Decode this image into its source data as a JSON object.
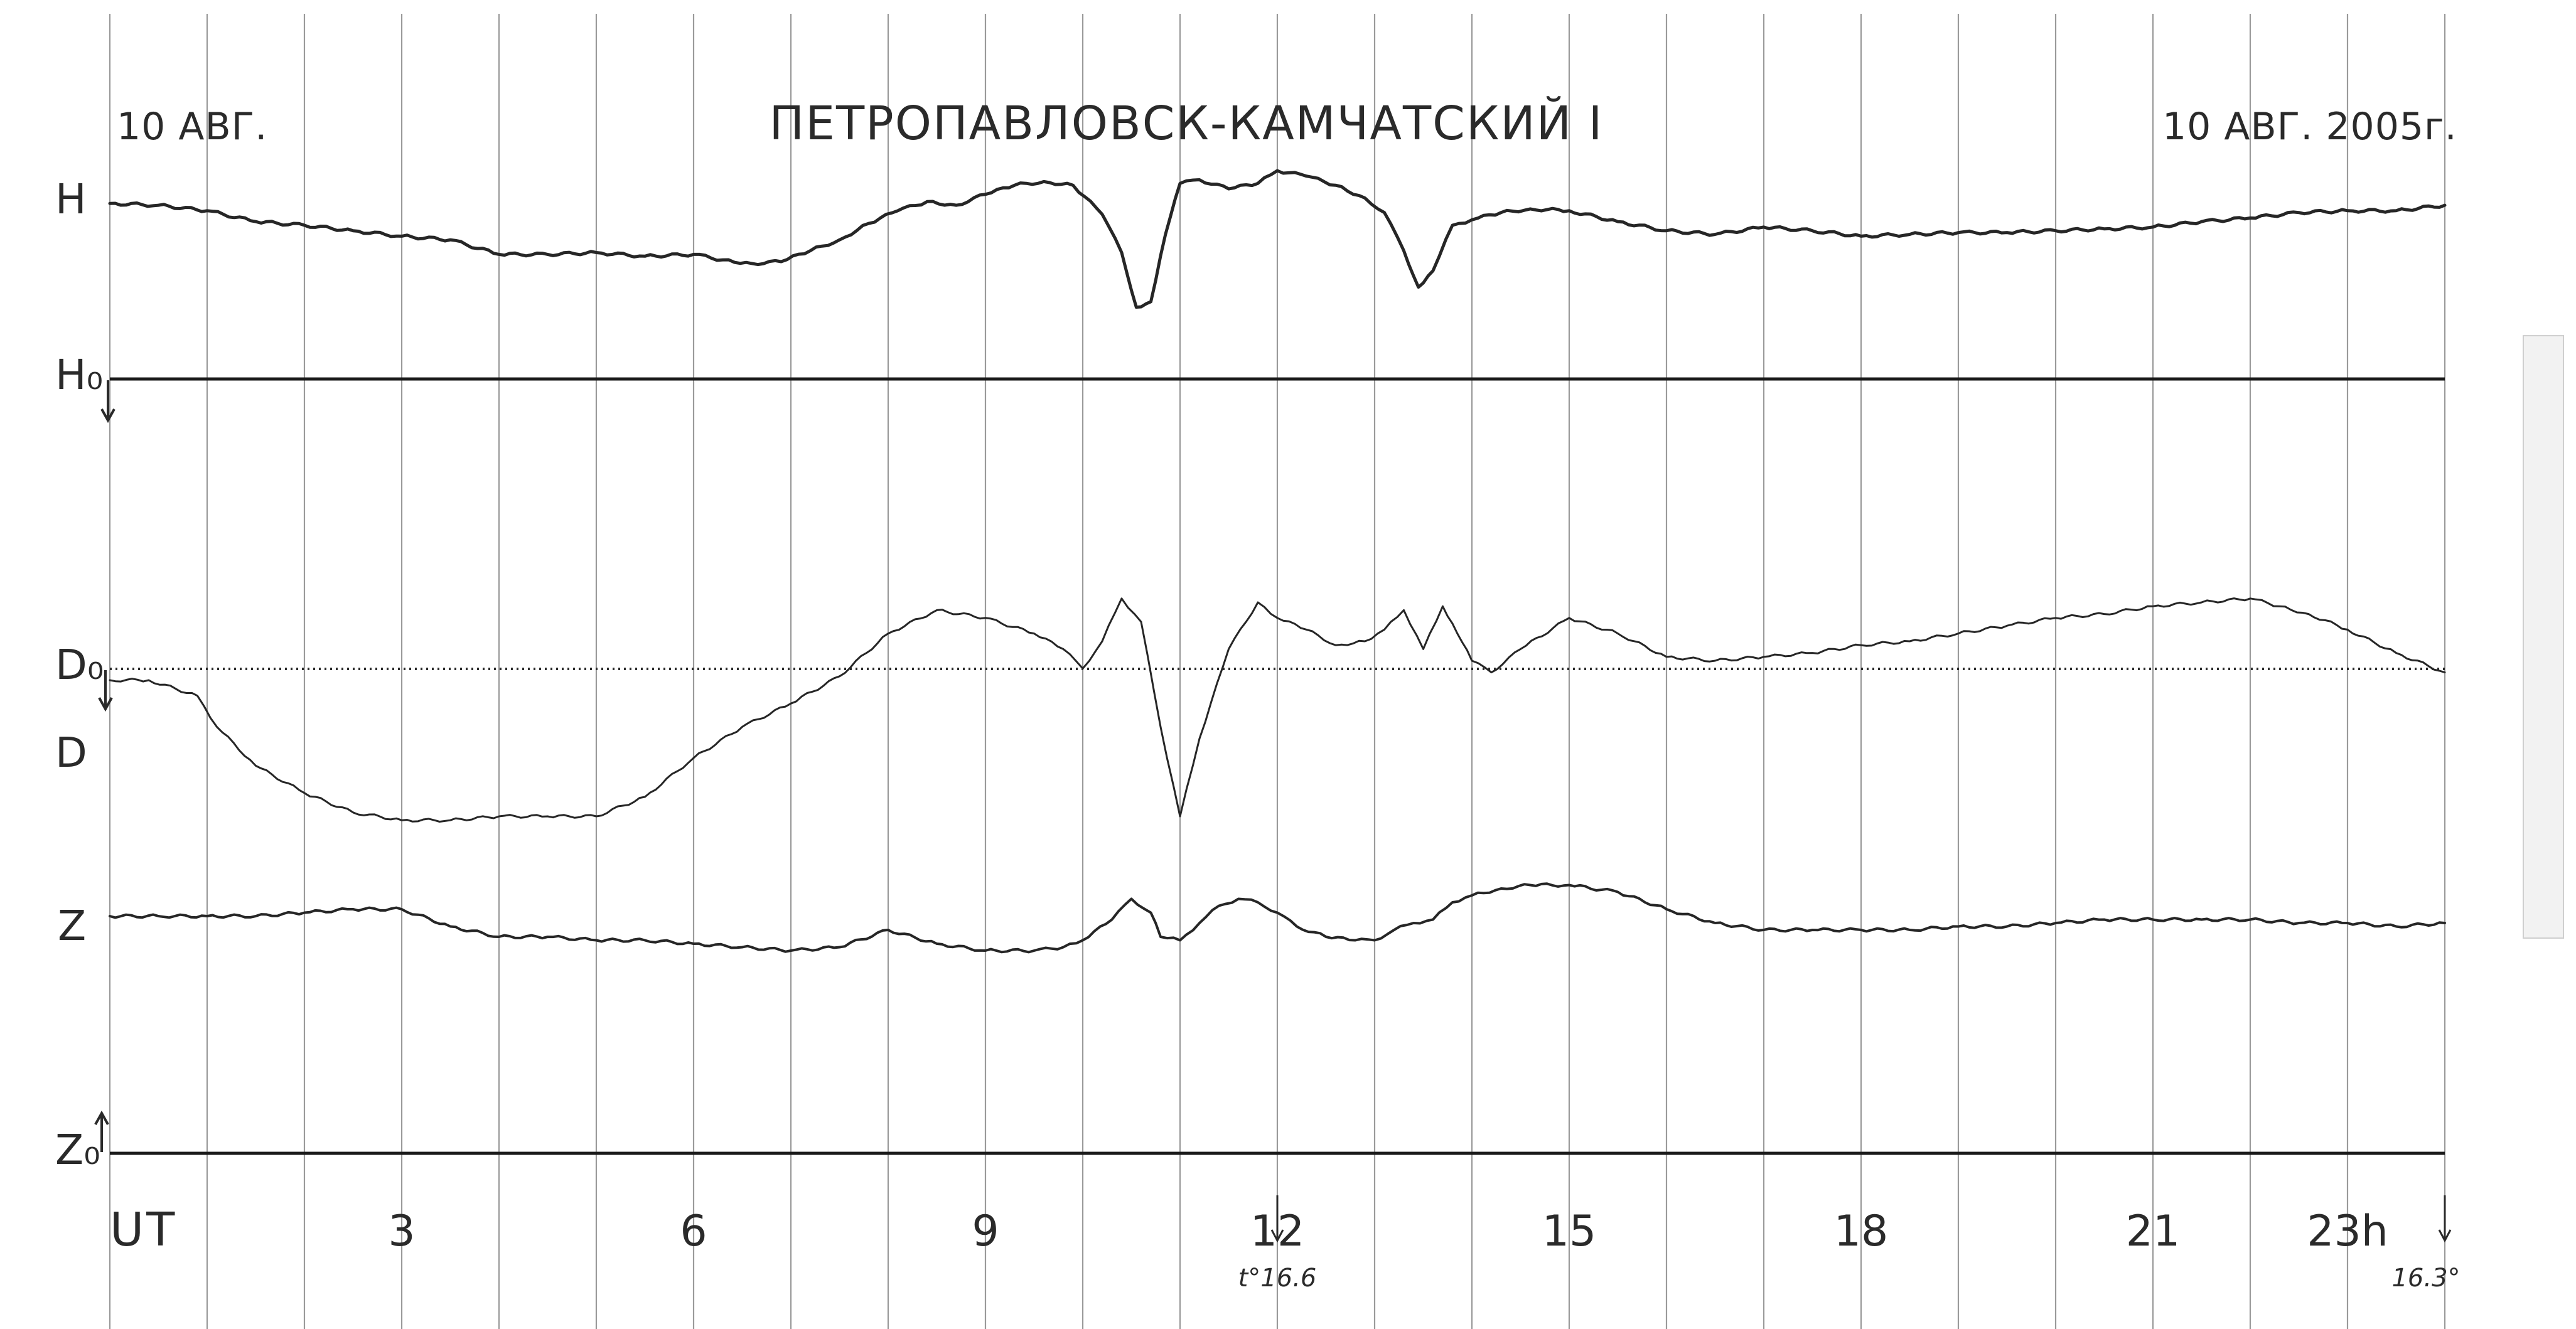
{
  "chart_data": {
    "type": "line",
    "title": "ПЕТРОПАВЛОВСК-КАМЧАТСКИЙ I",
    "date_left": "10 АВГ.",
    "date_right": "10 АВГ. 2005г.",
    "xlabel": "UT",
    "xlim": [
      0,
      24
    ],
    "x_ticks": [
      {
        "value": 3,
        "label": "3"
      },
      {
        "value": 6,
        "label": "6"
      },
      {
        "value": 9,
        "label": "9"
      },
      {
        "value": 12,
        "label": "12"
      },
      {
        "value": 15,
        "label": "15"
      },
      {
        "value": 18,
        "label": "18"
      },
      {
        "value": 21,
        "label": "21"
      },
      {
        "value": 23,
        "label": "23h"
      }
    ],
    "grid": true,
    "gridline_hours": [
      0,
      1,
      2,
      3,
      4,
      5,
      6,
      7,
      8,
      9,
      10,
      11,
      12,
      13,
      14,
      15,
      16,
      17,
      18,
      19,
      20,
      21,
      22,
      23,
      24
    ],
    "channel_labels": {
      "H": "H",
      "H0": "H₀",
      "D0": "D₀",
      "D": "D",
      "Z": "Z",
      "Z0": "Z₀"
    },
    "markers": [
      {
        "hour": 12,
        "label": "t°16.6"
      },
      {
        "hour": 24,
        "label": "16.3°"
      }
    ],
    "series": [
      {
        "name": "H",
        "x": [
          0,
          0.5,
          1,
          1.5,
          2,
          2.5,
          3,
          3.5,
          4,
          4.5,
          5,
          5.5,
          6,
          6.3,
          6.6,
          6.9,
          7.2,
          7.5,
          7.8,
          8.1,
          8.4,
          8.7,
          9,
          9.3,
          9.6,
          9.9,
          10.2,
          10.4,
          10.55,
          10.7,
          10.85,
          11,
          11.2,
          11.5,
          11.8,
          12,
          12.3,
          12.6,
          12.9,
          13.1,
          13.3,
          13.45,
          13.6,
          13.8,
          14,
          14.3,
          14.6,
          15,
          15.5,
          16,
          16.5,
          17,
          17.5,
          18,
          18.5,
          19,
          19.5,
          20,
          20.5,
          21,
          21.5,
          22,
          22.5,
          23,
          23.5,
          24
        ],
        "y": [
          -0.2,
          -0.1,
          0.2,
          0.8,
          1.0,
          1.3,
          1.6,
          1.8,
          2.6,
          2.6,
          2.5,
          2.7,
          2.6,
          2.9,
          3.1,
          3.0,
          2.4,
          1.8,
          0.9,
          0.2,
          -0.3,
          -0.1,
          -0.7,
          -1.2,
          -1.4,
          -1.2,
          0.4,
          2.5,
          5.5,
          5.2,
          1.5,
          -1.3,
          -1.5,
          -1.0,
          -1.3,
          -2.0,
          -1.7,
          -1.2,
          -0.5,
          0.3,
          2.4,
          4.4,
          3.5,
          1.0,
          0.7,
          0.3,
          0.1,
          0.2,
          0.8,
          1.3,
          1.5,
          1.1,
          1.3,
          1.6,
          1.5,
          1.4,
          1.4,
          1.3,
          1.2,
          1.1,
          0.8,
          0.6,
          0.3,
          0.2,
          0.2,
          -0.1
        ]
      },
      {
        "name": "D",
        "x": [
          0,
          0.4,
          0.9,
          1.1,
          1.5,
          2,
          2.5,
          3,
          3.5,
          4,
          4.5,
          5,
          5.5,
          6,
          6.5,
          7,
          7.5,
          8,
          8.5,
          9,
          9.5,
          9.8,
          10,
          10.2,
          10.4,
          10.6,
          10.8,
          11,
          11.2,
          11.5,
          11.8,
          12,
          12.3,
          12.6,
          12.9,
          13.1,
          13.3,
          13.5,
          13.7,
          13.85,
          14,
          14.2,
          14.5,
          15,
          15.5,
          16,
          16.5,
          17,
          17.5,
          18,
          18.5,
          19,
          19.5,
          20,
          20.5,
          21,
          21.5,
          22,
          22.3,
          22.6,
          23,
          23.5,
          24
        ],
        "y": [
          -2.0,
          -2.0,
          -1.6,
          -0.8,
          0.2,
          0.9,
          1.4,
          1.6,
          1.6,
          1.5,
          1.5,
          1.5,
          1.0,
          0.0,
          -0.8,
          -1.4,
          -2.1,
          -3.2,
          -3.8,
          -3.6,
          -3.2,
          -2.8,
          -2.3,
          -3.0,
          -4.1,
          -3.5,
          -0.8,
          1.5,
          -0.5,
          -2.8,
          -4.0,
          -3.6,
          -3.3,
          -2.9,
          -3.0,
          -3.3,
          -3.8,
          -2.8,
          -3.9,
          -3.2,
          -2.5,
          -2.2,
          -2.8,
          -3.6,
          -3.2,
          -2.6,
          -2.5,
          -2.6,
          -2.7,
          -2.9,
          -3.0,
          -3.2,
          -3.4,
          -3.6,
          -3.7,
          -3.9,
          -4.0,
          -4.1,
          -3.9,
          -3.7,
          -3.3,
          -2.7,
          -2.2
        ]
      },
      {
        "name": "Z",
        "x": [
          0,
          0.5,
          1,
          1.5,
          2,
          2.5,
          3,
          3.5,
          4,
          4.5,
          5,
          5.5,
          6,
          6.5,
          7,
          7.5,
          8,
          8.5,
          9,
          9.5,
          9.8,
          10,
          10.3,
          10.5,
          10.7,
          10.8,
          11,
          11.2,
          11.4,
          11.6,
          11.8,
          12,
          12.2,
          12.5,
          12.8,
          13,
          13.2,
          13.4,
          13.6,
          13.8,
          14,
          14.3,
          14.6,
          15,
          15.5,
          16,
          16.5,
          17,
          17.5,
          18,
          18.5,
          19,
          19.5,
          20,
          20.5,
          21,
          21.5,
          22,
          22.5,
          23,
          23.5,
          24
        ],
        "y": [
          0.0,
          0.0,
          0.0,
          0.0,
          -0.1,
          -0.2,
          -0.2,
          0.3,
          0.6,
          0.6,
          0.7,
          0.7,
          0.8,
          0.9,
          1.0,
          0.9,
          0.4,
          0.8,
          1.0,
          1.0,
          0.9,
          0.7,
          0.1,
          -0.5,
          -0.1,
          0.6,
          0.7,
          0.2,
          -0.3,
          -0.5,
          -0.4,
          -0.1,
          0.3,
          0.6,
          0.7,
          0.7,
          0.4,
          0.2,
          0.1,
          -0.4,
          -0.6,
          -0.8,
          -0.9,
          -0.9,
          -0.7,
          -0.2,
          0.2,
          0.4,
          0.4,
          0.4,
          0.4,
          0.3,
          0.3,
          0.2,
          0.1,
          0.1,
          0.1,
          0.1,
          0.2,
          0.2,
          0.3,
          0.2
        ]
      }
    ]
  }
}
